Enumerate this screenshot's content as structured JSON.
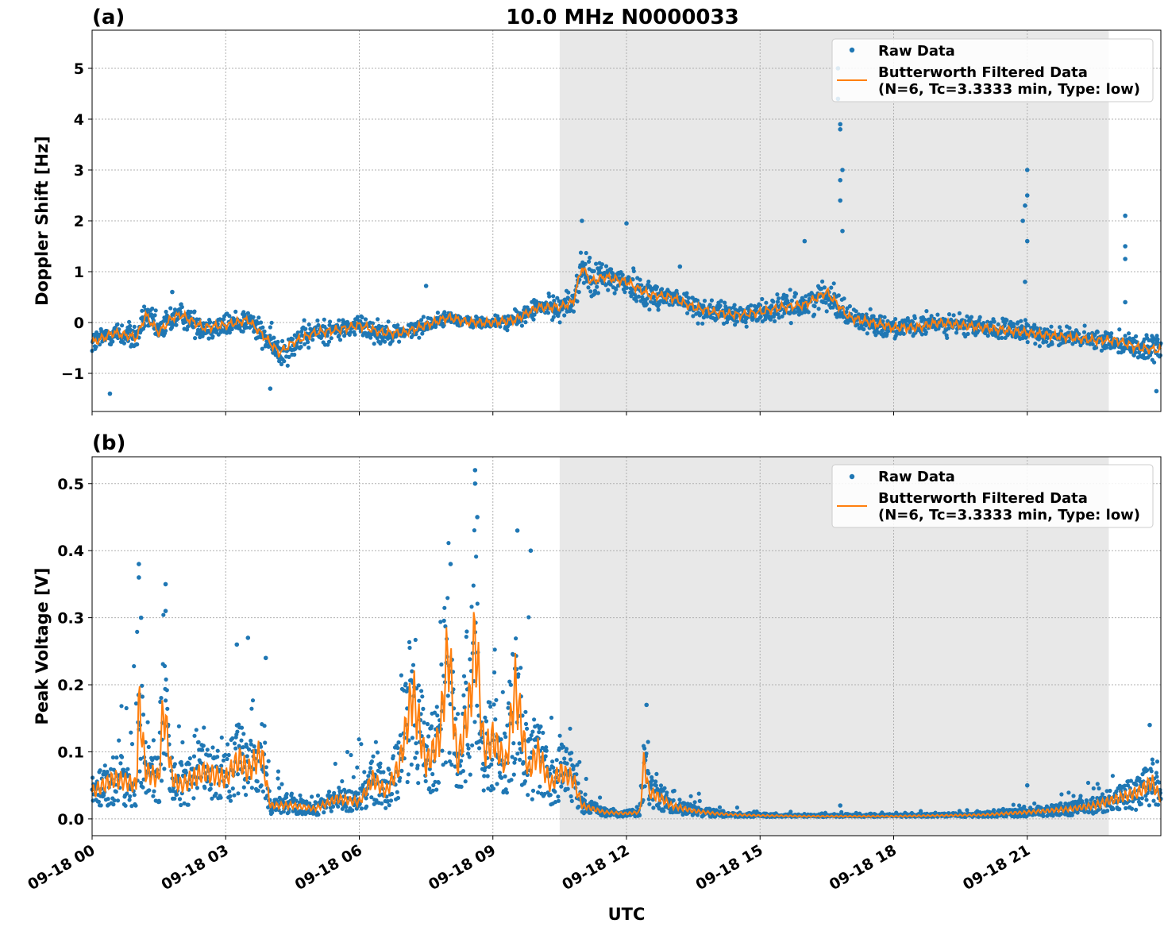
{
  "figure": {
    "title": "10.0 MHz N0000033",
    "xlabel": "UTC",
    "x_tick_labels": [
      "09-18 00",
      "09-18 03",
      "09-18 06",
      "09-18 09",
      "09-18 12",
      "09-18 15",
      "09-18 18",
      "09-18 21"
    ],
    "x_tick_hours": [
      0,
      3,
      6,
      9,
      12,
      15,
      18,
      21
    ],
    "xlim_hours": [
      0,
      24
    ],
    "shaded_region_hours": [
      10.5,
      22.83
    ],
    "colors": {
      "raw": "#1f77b4",
      "filtered": "#ff7f0e",
      "shade": "#e8e8e8",
      "grid": "#b0b0b0"
    }
  },
  "chart_data": [
    {
      "type": "scatter",
      "panel_label": "(a)",
      "ylabel": "Doppler Shift [Hz]",
      "ylim": [
        -1.75,
        5.75
      ],
      "y_ticks": [
        -1,
        0,
        1,
        2,
        3,
        4,
        5
      ],
      "y_tick_labels": [
        "−1",
        "0",
        "1",
        "2",
        "3",
        "4",
        "5"
      ],
      "grid": true,
      "legend_placement": "top-right",
      "legend": {
        "raw": "Raw Data",
        "filtered_line1": "Butterworth Filtered Data",
        "filtered_line2": "(N=6, Tc=3.3333 min, Type: low)"
      },
      "series": [
        {
          "name": "Butterworth Filtered Data",
          "kind": "line",
          "x_hours": [
            0,
            0.5,
            1.0,
            1.2,
            1.5,
            1.8,
            2.0,
            2.5,
            3.0,
            3.5,
            4.0,
            4.2,
            4.5,
            5.0,
            5.5,
            6.0,
            6.5,
            7.0,
            7.5,
            8.0,
            8.5,
            9.0,
            9.5,
            10.0,
            10.5,
            10.8,
            11.0,
            11.2,
            11.5,
            12.0,
            12.5,
            13.0,
            13.5,
            14.0,
            14.5,
            15.0,
            15.5,
            16.0,
            16.5,
            17.0,
            17.5,
            18.0,
            18.5,
            19.0,
            19.5,
            20.0,
            20.5,
            21.0,
            21.5,
            22.0,
            22.5,
            23.0,
            23.5,
            24.0
          ],
          "y": [
            -0.4,
            -0.2,
            -0.3,
            0.15,
            -0.2,
            0.1,
            0.15,
            -0.1,
            -0.05,
            0.05,
            -0.4,
            -0.6,
            -0.4,
            -0.2,
            -0.15,
            -0.05,
            -0.2,
            -0.2,
            -0.05,
            0.1,
            0.0,
            0.0,
            0.05,
            0.3,
            0.3,
            0.4,
            1.1,
            0.8,
            0.9,
            0.8,
            0.55,
            0.5,
            0.3,
            0.2,
            0.15,
            0.2,
            0.3,
            0.35,
            0.6,
            0.1,
            0.0,
            -0.1,
            -0.1,
            0.0,
            -0.05,
            -0.1,
            -0.15,
            -0.2,
            -0.25,
            -0.3,
            -0.35,
            -0.35,
            -0.5,
            -0.55
          ]
        },
        {
          "name": "Raw Data",
          "kind": "scatter",
          "spread": [
            0.3,
            0.3,
            0.35,
            0.3,
            0.35,
            0.35,
            0.3,
            0.3,
            0.3,
            0.3,
            0.35,
            0.4,
            0.35,
            0.3,
            0.3,
            0.25,
            0.3,
            0.2,
            0.2,
            0.15,
            0.15,
            0.15,
            0.2,
            0.25,
            0.3,
            0.35,
            0.5,
            0.45,
            0.45,
            0.4,
            0.35,
            0.3,
            0.3,
            0.25,
            0.25,
            0.3,
            0.3,
            0.3,
            0.35,
            0.3,
            0.25,
            0.25,
            0.25,
            0.25,
            0.25,
            0.25,
            0.25,
            0.25,
            0.25,
            0.25,
            0.25,
            0.25,
            0.3,
            0.35
          ],
          "outliers": [
            {
              "x": 16.8,
              "y": 3.9
            },
            {
              "x": 16.8,
              "y": 3.8
            },
            {
              "x": 16.85,
              "y": 3.0
            },
            {
              "x": 16.8,
              "y": 2.8
            },
            {
              "x": 16.8,
              "y": 2.4
            },
            {
              "x": 16.85,
              "y": 1.8
            },
            {
              "x": 16.75,
              "y": 5.0
            },
            {
              "x": 16.75,
              "y": 4.4
            },
            {
              "x": 21.0,
              "y": 3.0
            },
            {
              "x": 21.0,
              "y": 2.5
            },
            {
              "x": 20.95,
              "y": 2.3
            },
            {
              "x": 20.9,
              "y": 2.0
            },
            {
              "x": 21.0,
              "y": 1.6
            },
            {
              "x": 20.95,
              "y": 0.8
            },
            {
              "x": 23.2,
              "y": 2.1
            },
            {
              "x": 23.2,
              "y": 1.5
            },
            {
              "x": 23.2,
              "y": 1.25
            },
            {
              "x": 23.2,
              "y": 0.4
            },
            {
              "x": 16.0,
              "y": 1.6
            },
            {
              "x": 11.0,
              "y": 2.0
            },
            {
              "x": 12.0,
              "y": 1.95
            },
            {
              "x": 13.2,
              "y": 1.1
            },
            {
              "x": 7.5,
              "y": 0.72
            },
            {
              "x": 1.8,
              "y": 0.6
            },
            {
              "x": 0.4,
              "y": -1.4
            },
            {
              "x": 4.0,
              "y": -1.3
            },
            {
              "x": 23.9,
              "y": -1.35
            }
          ]
        }
      ]
    },
    {
      "type": "scatter",
      "panel_label": "(b)",
      "ylabel": "Peak Voltage [V]",
      "ylim": [
        -0.025,
        0.54
      ],
      "y_ticks": [
        0.0,
        0.1,
        0.2,
        0.3,
        0.4,
        0.5
      ],
      "y_tick_labels": [
        "0.0",
        "0.1",
        "0.2",
        "0.3",
        "0.4",
        "0.5"
      ],
      "grid": true,
      "legend_placement": "top-right",
      "legend": {
        "raw": "Raw Data",
        "filtered_line1": "Butterworth Filtered Data",
        "filtered_line2": "(N=6, Tc=3.3333 min, Type: low)"
      },
      "series": [
        {
          "name": "Butterworth Filtered Data",
          "kind": "line",
          "x_hours": [
            0,
            0.5,
            1.0,
            1.05,
            1.2,
            1.5,
            1.6,
            1.8,
            2.0,
            2.5,
            3.0,
            3.3,
            3.5,
            3.8,
            4.0,
            4.5,
            5.0,
            5.5,
            6.0,
            6.3,
            6.6,
            6.9,
            7.2,
            7.5,
            7.8,
            8.0,
            8.2,
            8.5,
            8.6,
            8.8,
            9.0,
            9.3,
            9.5,
            9.8,
            10.0,
            10.3,
            10.5,
            10.8,
            11.0,
            11.5,
            12.0,
            12.3,
            12.4,
            12.5,
            12.8,
            13.0,
            13.5,
            14.0,
            14.5,
            15.0,
            16.0,
            17.0,
            18.0,
            19.0,
            20.0,
            21.0,
            22.0,
            22.5,
            23.0,
            23.5,
            23.8,
            24.0
          ],
          "y": [
            0.04,
            0.06,
            0.05,
            0.18,
            0.07,
            0.06,
            0.17,
            0.06,
            0.05,
            0.07,
            0.06,
            0.09,
            0.07,
            0.1,
            0.02,
            0.02,
            0.015,
            0.03,
            0.025,
            0.06,
            0.04,
            0.08,
            0.19,
            0.08,
            0.12,
            0.26,
            0.08,
            0.18,
            0.28,
            0.1,
            0.12,
            0.08,
            0.2,
            0.07,
            0.1,
            0.05,
            0.07,
            0.06,
            0.02,
            0.01,
            0.008,
            0.01,
            0.09,
            0.04,
            0.03,
            0.02,
            0.012,
            0.008,
            0.006,
            0.005,
            0.004,
            0.004,
            0.004,
            0.005,
            0.006,
            0.01,
            0.015,
            0.02,
            0.03,
            0.04,
            0.055,
            0.03
          ]
        },
        {
          "name": "Raw Data",
          "kind": "scatter",
          "upper_envelope": [
            0.1,
            0.12,
            0.38,
            0.15,
            0.2,
            0.35,
            0.15,
            0.14,
            0.15,
            0.16,
            0.2,
            0.27,
            0.22,
            0.24,
            0.08,
            0.05,
            0.06,
            0.09,
            0.2,
            0.12,
            0.14,
            0.24,
            0.25,
            0.16,
            0.38,
            0.2,
            0.33,
            0.45,
            0.52,
            0.3,
            0.3,
            0.42,
            0.4,
            0.2,
            0.16,
            0.16,
            0.1,
            0.04,
            0.02,
            0.02,
            0.17,
            0.08,
            0.07,
            0.05,
            0.03,
            0.02,
            0.015,
            0.012,
            0.01,
            0.01,
            0.015,
            0.02,
            0.03,
            0.05,
            0.09,
            0.14
          ],
          "upper_envelope_x": [
            0,
            0.5,
            1.0,
            1.2,
            1.4,
            1.6,
            1.8,
            2.0,
            2.5,
            3.0,
            3.2,
            3.5,
            3.7,
            3.9,
            4.1,
            4.5,
            5.0,
            5.5,
            6.0,
            6.3,
            6.6,
            7.0,
            7.2,
            7.5,
            7.9,
            8.2,
            8.4,
            8.6,
            8.65,
            8.9,
            9.2,
            9.55,
            9.85,
            10.1,
            10.5,
            10.7,
            11.0,
            11.3,
            11.6,
            12.2,
            12.45,
            12.7,
            13.0,
            13.5,
            14.0,
            14.5,
            15.0,
            16.0,
            17.0,
            18.0,
            19.0,
            20.0,
            21.0,
            22.0,
            23.0,
            23.75
          ],
          "outliers": [
            {
              "x": 1.05,
              "y": 0.38
            },
            {
              "x": 1.05,
              "y": 0.36
            },
            {
              "x": 1.1,
              "y": 0.3
            },
            {
              "x": 1.65,
              "y": 0.35
            },
            {
              "x": 1.65,
              "y": 0.31
            },
            {
              "x": 3.25,
              "y": 0.26
            },
            {
              "x": 3.5,
              "y": 0.27
            },
            {
              "x": 3.9,
              "y": 0.24
            },
            {
              "x": 8.6,
              "y": 0.52
            },
            {
              "x": 8.6,
              "y": 0.5
            },
            {
              "x": 8.65,
              "y": 0.45
            },
            {
              "x": 9.55,
              "y": 0.43
            },
            {
              "x": 9.85,
              "y": 0.4
            },
            {
              "x": 8.05,
              "y": 0.38
            },
            {
              "x": 12.45,
              "y": 0.17
            },
            {
              "x": 23.75,
              "y": 0.14
            },
            {
              "x": 21.0,
              "y": 0.05
            },
            {
              "x": 16.8,
              "y": 0.02
            }
          ]
        }
      ]
    }
  ]
}
